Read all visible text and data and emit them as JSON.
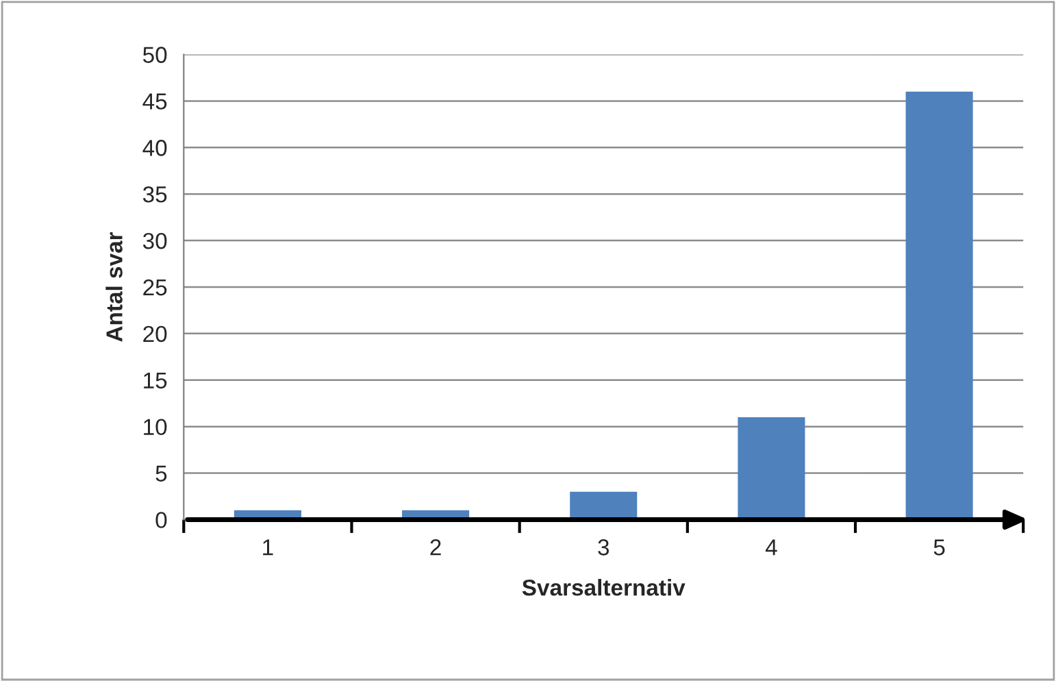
{
  "chart_data": {
    "type": "bar",
    "xlabel": "Svarsalternativ",
    "ylabel": "Antal svar",
    "categories": [
      "1",
      "2",
      "3",
      "4",
      "5"
    ],
    "values": [
      1,
      1,
      3,
      11,
      46
    ],
    "color": "#4f81bd",
    "ylim": [
      0,
      50
    ],
    "yticks": [
      0,
      5,
      10,
      15,
      20,
      25,
      30,
      35,
      40,
      45,
      50
    ],
    "grid": "y",
    "legend": false
  }
}
